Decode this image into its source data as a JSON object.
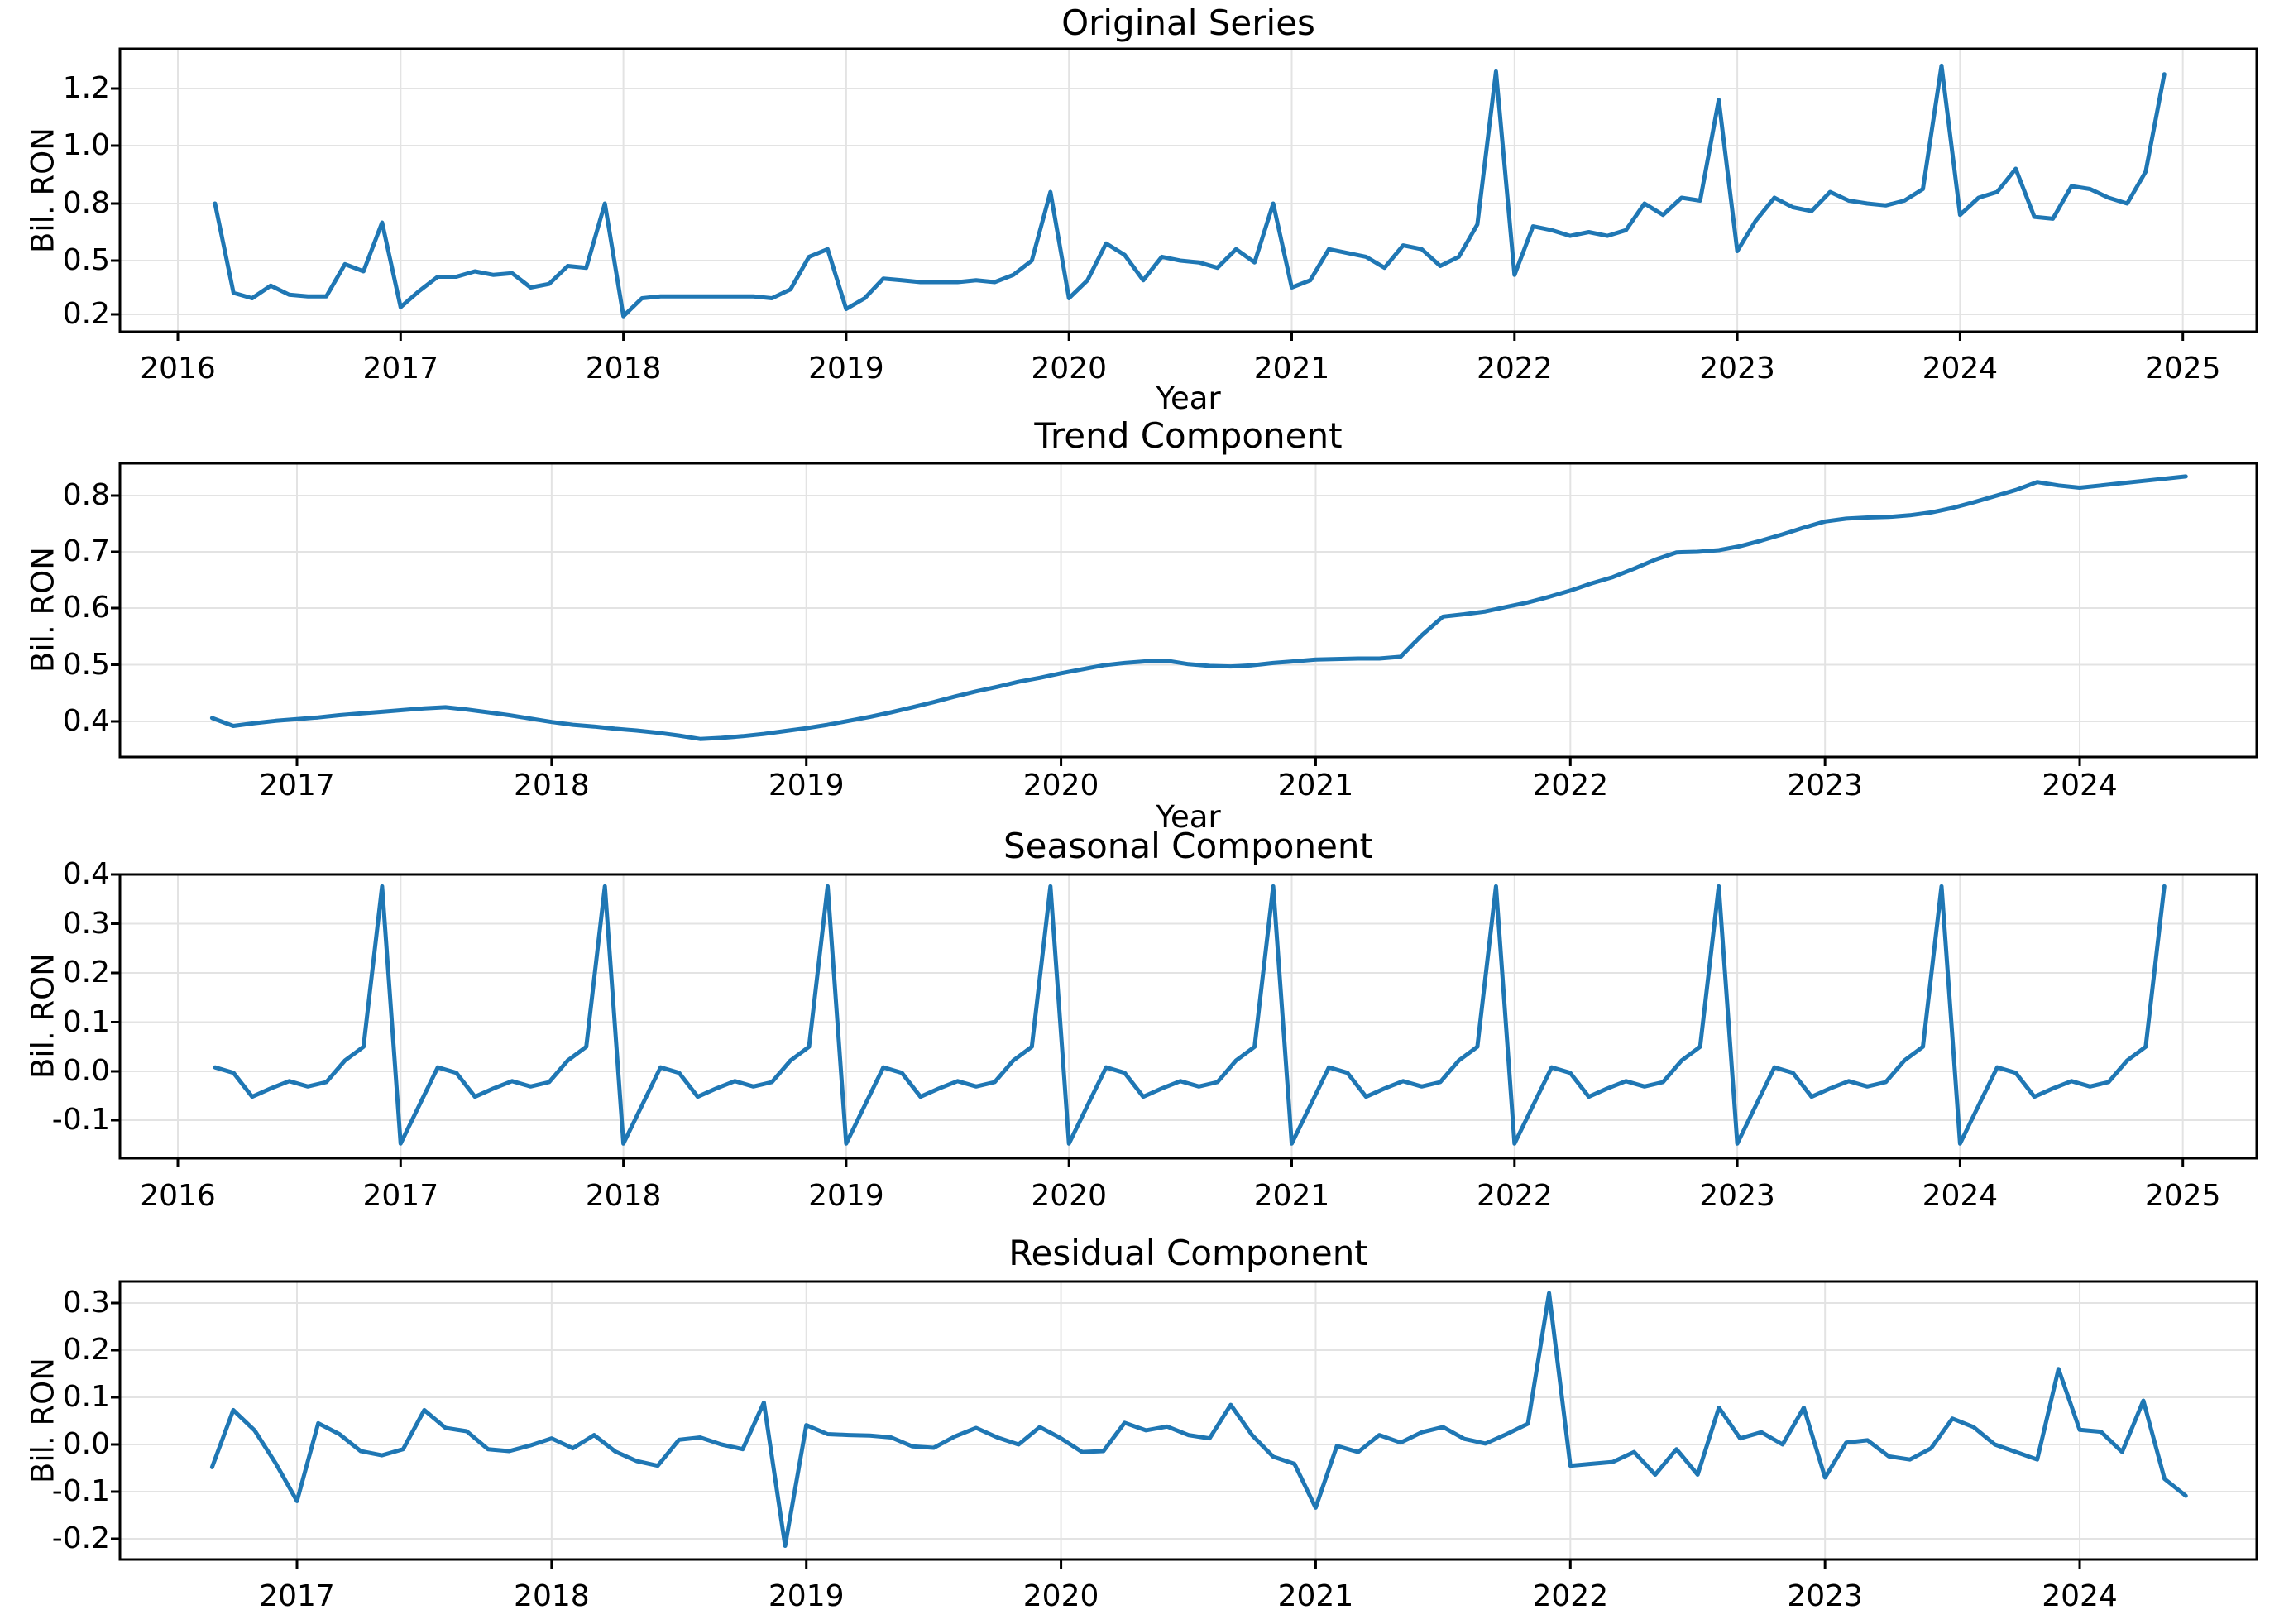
{
  "figure": {
    "background": "#ffffff",
    "line_color": "#1f77b4",
    "grid_color": "#e3e3e3",
    "spine_color": "#000000"
  },
  "chart_data": [
    {
      "id": "original",
      "type": "line",
      "title": "Original Series",
      "xlabel": "Year",
      "ylabel": "Bil. RON",
      "grid": true,
      "legend": false,
      "x_tick_labels": [
        "2016",
        "2017",
        "2018",
        "2019",
        "2020",
        "2021",
        "2022",
        "2023",
        "2024",
        "2025"
      ],
      "y_tick_labels": [
        "1.2",
        "1.0",
        "0.8",
        "0.5",
        "0.2"
      ],
      "y_tick_values": [
        1.2,
        1.0,
        0.8,
        0.5,
        0.2
      ],
      "series": {
        "start": "2016-03",
        "frequency": "monthly",
        "values": [
          0.8,
          0.32,
          0.29,
          0.36,
          0.31,
          0.3,
          0.3,
          0.48,
          0.44,
          0.7,
          0.24,
          0.33,
          0.41,
          0.41,
          0.44,
          0.42,
          0.43,
          0.35,
          0.37,
          0.47,
          0.46,
          0.8,
          0.19,
          0.29,
          0.3,
          0.3,
          0.3,
          0.3,
          0.3,
          0.3,
          0.29,
          0.34,
          0.52,
          0.56,
          0.23,
          0.29,
          0.4,
          0.39,
          0.38,
          0.38,
          0.38,
          0.39,
          0.38,
          0.42,
          0.5,
          0.84,
          0.29,
          0.39,
          0.59,
          0.53,
          0.39,
          0.52,
          0.5,
          0.49,
          0.46,
          0.56,
          0.49,
          0.8,
          0.35,
          0.39,
          0.56,
          0.54,
          0.52,
          0.46,
          0.58,
          0.56,
          0.47,
          0.52,
          0.69,
          1.26,
          0.42,
          0.68,
          0.66,
          0.63,
          0.65,
          0.63,
          0.66,
          0.8,
          0.74,
          0.82,
          0.81,
          1.16,
          0.55,
          0.71,
          0.82,
          0.78,
          0.76,
          0.84,
          0.81,
          0.8,
          0.79,
          0.81,
          0.85,
          1.28,
          0.74,
          0.82,
          0.84,
          0.92,
          0.73,
          0.72,
          0.86,
          0.85,
          0.82,
          0.8,
          0.91,
          1.25
        ]
      }
    },
    {
      "id": "trend",
      "type": "line",
      "title": "Trend Component",
      "xlabel": "Year",
      "ylabel": "Bil. RON",
      "grid": true,
      "legend": false,
      "x_tick_labels": [
        "2017",
        "2018",
        "2019",
        "2020",
        "2021",
        "2022",
        "2023",
        "2024"
      ],
      "y_tick_labels": [
        "0.8",
        "0.7",
        "0.6",
        "0.5",
        "0.4"
      ],
      "y_tick_values": [
        0.8,
        0.7,
        0.6,
        0.5,
        0.4
      ],
      "series": {
        "start": "2016-09",
        "frequency": "monthly",
        "values": [
          0.406,
          0.392,
          0.397,
          0.401,
          0.404,
          0.407,
          0.411,
          0.414,
          0.417,
          0.42,
          0.423,
          0.425,
          0.421,
          0.416,
          0.411,
          0.405,
          0.399,
          0.394,
          0.391,
          0.387,
          0.384,
          0.38,
          0.375,
          0.369,
          0.371,
          0.374,
          0.378,
          0.383,
          0.388,
          0.394,
          0.401,
          0.408,
          0.416,
          0.425,
          0.434,
          0.444,
          0.453,
          0.461,
          0.47,
          0.477,
          0.485,
          0.492,
          0.499,
          0.503,
          0.506,
          0.507,
          0.501,
          0.498,
          0.497,
          0.499,
          0.503,
          0.506,
          0.509,
          0.51,
          0.511,
          0.511,
          0.514,
          0.552,
          0.585,
          0.589,
          0.594,
          0.602,
          0.61,
          0.62,
          0.631,
          0.644,
          0.655,
          0.67,
          0.686,
          0.699,
          0.7,
          0.703,
          0.71,
          0.72,
          0.731,
          0.743,
          0.754,
          0.759,
          0.761,
          0.762,
          0.765,
          0.77,
          0.778,
          0.788,
          0.799,
          0.81,
          0.824,
          0.818,
          0.814,
          0.818,
          0.822,
          0.826,
          0.83,
          0.834
        ]
      }
    },
    {
      "id": "seasonal",
      "type": "line",
      "title": "Seasonal Component",
      "xlabel": "",
      "ylabel": "Bil. RON",
      "grid": true,
      "legend": false,
      "x_tick_labels": [
        "2016",
        "2017",
        "2018",
        "2019",
        "2020",
        "2021",
        "2022",
        "2023",
        "2024",
        "2025"
      ],
      "y_tick_labels": [
        "0.4",
        "0.3",
        "0.2",
        "0.1",
        "0.0",
        "-0.1"
      ],
      "y_tick_values": [
        0.4,
        0.3,
        0.2,
        0.1,
        0.0,
        -0.1
      ],
      "series": {
        "start": "2016-03",
        "end": "2024-12",
        "frequency": "monthly",
        "pattern_jan_to_dec": [
          -0.148,
          -0.07,
          0.008,
          -0.003,
          -0.052,
          -0.035,
          -0.02,
          -0.031,
          -0.022,
          0.022,
          0.05,
          0.376
        ]
      }
    },
    {
      "id": "residual",
      "type": "line",
      "title": "Residual Component",
      "xlabel": "",
      "ylabel": "Bil. RON",
      "grid": true,
      "legend": false,
      "x_tick_labels": [
        "2017",
        "2018",
        "2019",
        "2020",
        "2021",
        "2022",
        "2023",
        "2024"
      ],
      "y_tick_labels": [
        "0.3",
        "0.2",
        "0.1",
        "0.0",
        "-0.1",
        "-0.2"
      ],
      "y_tick_values": [
        0.3,
        0.2,
        0.1,
        0.0,
        -0.1,
        -0.2
      ],
      "series": {
        "start": "2016-09",
        "frequency": "monthly",
        "values": [
          -0.048,
          0.073,
          0.03,
          -0.04,
          -0.12,
          0.045,
          0.022,
          -0.014,
          -0.023,
          -0.01,
          0.073,
          0.035,
          0.028,
          -0.01,
          -0.014,
          -0.002,
          0.013,
          -0.008,
          0.02,
          -0.015,
          -0.035,
          -0.045,
          0.01,
          0.015,
          0.0,
          -0.01,
          0.089,
          -0.215,
          0.041,
          0.022,
          0.02,
          0.019,
          0.015,
          -0.004,
          -0.007,
          0.017,
          0.035,
          0.015,
          0.0,
          0.037,
          0.013,
          -0.016,
          -0.014,
          0.046,
          0.03,
          0.038,
          0.02,
          0.013,
          0.084,
          0.02,
          -0.026,
          -0.041,
          -0.134,
          -0.003,
          -0.016,
          0.02,
          0.004,
          0.026,
          0.037,
          0.012,
          0.002,
          0.022,
          0.044,
          0.321,
          -0.045,
          -0.041,
          -0.037,
          -0.016,
          -0.064,
          -0.01,
          -0.064,
          0.078,
          0.013,
          0.026,
          0.0,
          0.078,
          -0.07,
          0.004,
          0.009,
          -0.025,
          -0.032,
          -0.008,
          0.055,
          0.037,
          0.0,
          -0.016,
          -0.032,
          0.16,
          0.031,
          0.027,
          -0.016,
          0.093,
          -0.073,
          -0.109
        ]
      }
    }
  ]
}
